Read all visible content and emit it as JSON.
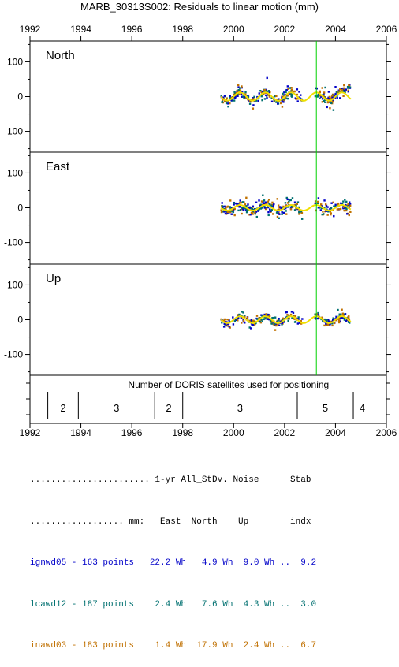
{
  "chart_data": {
    "type": "scatter",
    "title": "MARB_30313S002: Residuals to linear motion (mm)",
    "x_ticks": [
      "1992",
      "1994",
      "1996",
      "1998",
      "2000",
      "2002",
      "2004",
      "2006"
    ],
    "xlim": [
      1992,
      2006
    ],
    "ylim": [
      -160,
      160
    ],
    "y_ticks": [
      "100",
      "0",
      "-100"
    ],
    "panels": [
      {
        "name": "North",
        "data_span": [
          1999.5,
          2004.6
        ],
        "gap": [
          2002.7,
          2003.2
        ],
        "spread": 22,
        "seasonal_amplitude": 12
      },
      {
        "name": "East",
        "data_span": [
          1999.5,
          2004.6
        ],
        "gap": [
          2002.7,
          2003.2
        ],
        "spread": 25,
        "seasonal_amplitude": 8
      },
      {
        "name": "Up",
        "data_span": [
          1999.5,
          2004.6
        ],
        "gap": [
          2002.7,
          2003.2
        ],
        "spread": 15,
        "seasonal_amplitude": 10
      }
    ],
    "event_line_x": 2003.25,
    "series": [
      {
        "name": "ignwd05",
        "color": "#0000c8"
      },
      {
        "name": "lcawd12",
        "color": "#007070"
      },
      {
        "name": "inawd03",
        "color": "#c07000"
      }
    ],
    "model_color": "#f0e000",
    "event_color": "#00d000",
    "satellites": {
      "label": "Number of DORIS satellites used for positioning",
      "dividers": [
        1992.7,
        1993.9,
        1996.9,
        1998.0,
        2002.5,
        2004.7
      ],
      "segments": [
        {
          "value": "2",
          "x": 1993.3
        },
        {
          "value": "3",
          "x": 1995.4
        },
        {
          "value": "2",
          "x": 1997.45
        },
        {
          "value": "3",
          "x": 2000.25
        },
        {
          "value": "5",
          "x": 2003.6
        },
        {
          "value": "4",
          "x": 2005.05
        }
      ]
    }
  },
  "stats": {
    "header1": "....................... 1-yr All_StDv. Noise      Stab",
    "header2": ".................. mm:   East  North    Up        indx",
    "rows": [
      {
        "text": "ignwd05 - 163 points   22.2 Wh   4.9 Wh  9.0 Wh ..  9.2",
        "color": "#0000c8"
      },
      {
        "text": "lcawd12 - 187 points    2.4 Wh   7.6 Wh  4.3 Wh ..  3.0",
        "color": "#007070"
      },
      {
        "text": "inawd03 - 183 points    1.4 Wh  17.9 Wh  2.4 Wh ..  6.7",
        "color": "#c07000"
      }
    ]
  }
}
